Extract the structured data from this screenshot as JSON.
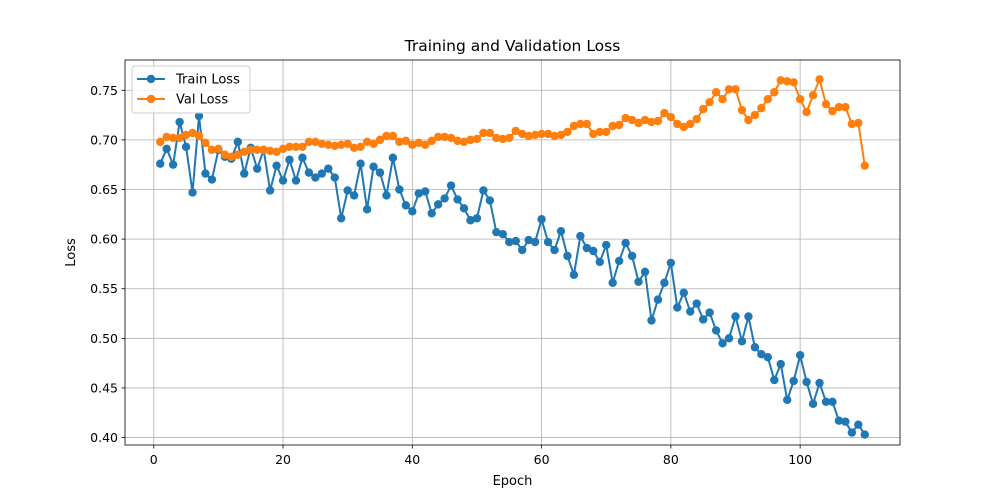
{
  "chart_data": {
    "type": "line",
    "title": "Training and Validation Loss",
    "xlabel": "Epoch",
    "ylabel": "Loss",
    "xlim": [
      -4.45,
      115.45
    ],
    "ylim": [
      0.3925,
      0.7805
    ],
    "xticks": [
      0,
      20,
      40,
      60,
      80,
      100
    ],
    "yticks": [
      0.4,
      0.45,
      0.5,
      0.55,
      0.6,
      0.65,
      0.7,
      0.75
    ],
    "ytick_labels": [
      "0.40",
      "0.45",
      "0.50",
      "0.55",
      "0.60",
      "0.65",
      "0.70",
      "0.75"
    ],
    "grid": true,
    "legend_position": "top-left",
    "x": [
      1,
      2,
      3,
      4,
      5,
      6,
      7,
      8,
      9,
      10,
      11,
      12,
      13,
      14,
      15,
      16,
      17,
      18,
      19,
      20,
      21,
      22,
      23,
      24,
      25,
      26,
      27,
      28,
      29,
      30,
      31,
      32,
      33,
      34,
      35,
      36,
      37,
      38,
      39,
      40,
      41,
      42,
      43,
      44,
      45,
      46,
      47,
      48,
      49,
      50,
      51,
      52,
      53,
      54,
      55,
      56,
      57,
      58,
      59,
      60,
      61,
      62,
      63,
      64,
      65,
      66,
      67,
      68,
      69,
      70,
      71,
      72,
      73,
      74,
      75,
      76,
      77,
      78,
      79,
      80,
      81,
      82,
      83,
      84,
      85,
      86,
      87,
      88,
      89,
      90,
      91,
      92,
      93,
      94,
      95,
      96,
      97,
      98,
      99,
      100,
      101,
      102,
      103,
      104,
      105,
      106,
      107,
      108,
      109,
      110
    ],
    "series": [
      {
        "name": "Train Loss",
        "color": "#1f77b4",
        "values": [
          0.676,
          0.691,
          0.675,
          0.718,
          0.693,
          0.647,
          0.724,
          0.666,
          0.66,
          0.69,
          0.683,
          0.681,
          0.698,
          0.666,
          0.692,
          0.671,
          0.69,
          0.649,
          0.674,
          0.659,
          0.68,
          0.659,
          0.682,
          0.667,
          0.662,
          0.666,
          0.671,
          0.662,
          0.621,
          0.649,
          0.644,
          0.676,
          0.63,
          0.673,
          0.667,
          0.644,
          0.682,
          0.65,
          0.634,
          0.628,
          0.646,
          0.648,
          0.626,
          0.635,
          0.641,
          0.654,
          0.64,
          0.631,
          0.619,
          0.621,
          0.649,
          0.639,
          0.607,
          0.605,
          0.597,
          0.598,
          0.589,
          0.599,
          0.597,
          0.62,
          0.597,
          0.589,
          0.608,
          0.583,
          0.564,
          0.603,
          0.591,
          0.588,
          0.577,
          0.594,
          0.556,
          0.578,
          0.596,
          0.583,
          0.557,
          0.567,
          0.518,
          0.539,
          0.556,
          0.576,
          0.531,
          0.546,
          0.527,
          0.535,
          0.519,
          0.526,
          0.508,
          0.495,
          0.5,
          0.522,
          0.497,
          0.522,
          0.491,
          0.484,
          0.481,
          0.458,
          0.474,
          0.438,
          0.457,
          0.483,
          0.456,
          0.434,
          0.455,
          0.436,
          0.436,
          0.417,
          0.416,
          0.405,
          0.413,
          0.403
        ]
      },
      {
        "name": "Val Loss",
        "color": "#ff7f0e",
        "values": [
          0.698,
          0.703,
          0.702,
          0.702,
          0.705,
          0.707,
          0.704,
          0.697,
          0.69,
          0.691,
          0.685,
          0.683,
          0.685,
          0.688,
          0.69,
          0.69,
          0.69,
          0.689,
          0.688,
          0.691,
          0.693,
          0.693,
          0.693,
          0.698,
          0.698,
          0.696,
          0.695,
          0.694,
          0.695,
          0.696,
          0.692,
          0.693,
          0.698,
          0.696,
          0.7,
          0.704,
          0.704,
          0.698,
          0.699,
          0.695,
          0.697,
          0.695,
          0.699,
          0.703,
          0.703,
          0.702,
          0.699,
          0.698,
          0.7,
          0.701,
          0.707,
          0.707,
          0.702,
          0.701,
          0.702,
          0.709,
          0.706,
          0.704,
          0.705,
          0.706,
          0.706,
          0.704,
          0.705,
          0.708,
          0.714,
          0.716,
          0.716,
          0.706,
          0.708,
          0.708,
          0.714,
          0.715,
          0.722,
          0.72,
          0.717,
          0.72,
          0.718,
          0.719,
          0.727,
          0.723,
          0.716,
          0.713,
          0.716,
          0.721,
          0.731,
          0.738,
          0.748,
          0.741,
          0.751,
          0.751,
          0.73,
          0.72,
          0.725,
          0.732,
          0.741,
          0.748,
          0.76,
          0.759,
          0.758,
          0.741,
          0.728,
          0.745,
          0.761,
          0.736,
          0.729,
          0.733,
          0.733,
          0.716,
          0.717,
          0.674
        ]
      }
    ]
  }
}
